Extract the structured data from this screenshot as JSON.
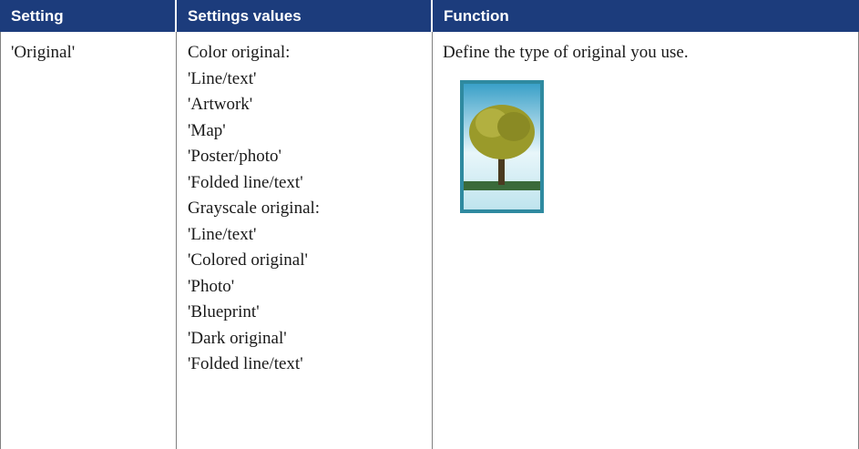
{
  "table": {
    "headers": [
      "Setting",
      "Settings values",
      "Function"
    ],
    "rows": [
      [
        "'Original'",
        [
          "Color original:",
          "'Line/text'",
          "'Artwork'",
          "'Map'",
          "'Poster/photo'",
          "'Folded line/text'",
          "Grayscale original:",
          "'Line/text'",
          "'Colored original'",
          "'Photo'",
          "'Blueprint'",
          "'Dark original'",
          "'Folded line/text'"
        ],
        "Define the type of original you use."
      ]
    ]
  }
}
